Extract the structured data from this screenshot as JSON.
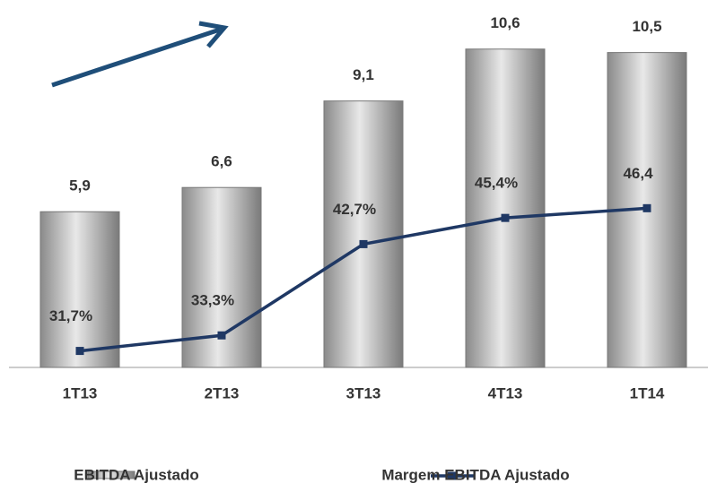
{
  "chart_data": {
    "type": "bar_line",
    "categories": [
      "1T13",
      "2T13",
      "3T13",
      "4T13",
      "1T14"
    ],
    "series": [
      {
        "name": "EBITDA Ajustado",
        "color": "#b8b8b8",
        "values": [
          5.9,
          6.6,
          9.1,
          10.6,
          10.5
        ],
        "value_labels": [
          "5,9",
          "6,6",
          "9,1",
          "10,6",
          "10,5"
        ]
      },
      {
        "name": "Margem EBITDA Ajustado",
        "color": "#1f3864",
        "axis": "y2",
        "values": [
          31.7,
          33.3,
          42.7,
          45.4,
          46.4
        ],
        "value_labels": [
          "31,7%",
          "33,3%",
          "42,7%",
          "45,4%",
          "46,4"
        ]
      }
    ],
    "ylim": [
      1.4,
      11.5
    ],
    "y2lim": [
      30,
      66
    ],
    "legend": "bottom"
  }
}
